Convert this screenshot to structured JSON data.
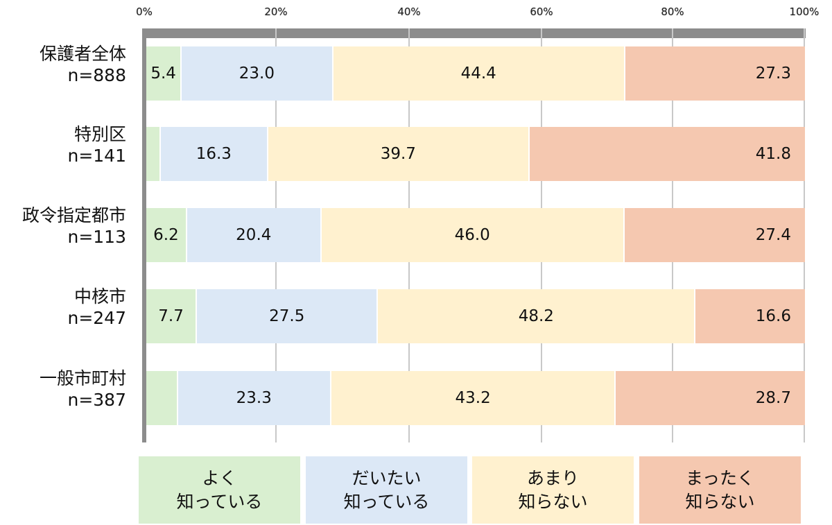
{
  "chart_data": {
    "type": "bar",
    "orientation": "horizontal",
    "stacked": true,
    "percent": true,
    "title": "",
    "xlabel": "",
    "ylabel": "",
    "xlim": [
      0,
      100
    ],
    "x_ticks": [
      "0%",
      "20%",
      "40%",
      "60%",
      "80%",
      "100%"
    ],
    "grid": true,
    "legend_position": "bottom",
    "categories": [
      {
        "name": "保護者全体",
        "n": "n=888"
      },
      {
        "name": "特別区",
        "n": "n=141"
      },
      {
        "name": "政令指定都市",
        "n": "n=113"
      },
      {
        "name": "中核市",
        "n": "n=247"
      },
      {
        "name": "一般市町村",
        "n": "n=387"
      }
    ],
    "series": [
      {
        "name": "よく知っている",
        "color": "#d9efd0",
        "values": [
          5.4,
          2.2,
          6.2,
          7.7,
          4.8
        ],
        "labels": [
          "5.4",
          "",
          "6.2",
          "7.7",
          ""
        ]
      },
      {
        "name": "だいたい知っている",
        "color": "#dce8f6",
        "values": [
          23.0,
          16.3,
          20.4,
          27.5,
          23.3
        ],
        "labels": [
          "23.0",
          "16.3",
          "20.4",
          "27.5",
          "23.3"
        ]
      },
      {
        "name": "あまり知らない",
        "color": "#fff1cf",
        "values": [
          44.4,
          39.7,
          46.0,
          48.2,
          43.2
        ],
        "labels": [
          "44.4",
          "39.7",
          "46.0",
          "48.2",
          "43.2"
        ]
      },
      {
        "name": "まったく知らない",
        "color": "#f5c8b0",
        "values": [
          27.3,
          41.8,
          27.4,
          16.6,
          28.7
        ],
        "labels": [
          "27.3",
          "41.8",
          "27.4",
          "16.6",
          "28.7"
        ]
      }
    ]
  },
  "axis": {
    "ticks": [
      "0%",
      "20%",
      "40%",
      "60%",
      "80%",
      "100%"
    ]
  },
  "rows": [
    {
      "label": "保護者全体",
      "n": "n=888"
    },
    {
      "label": "特別区",
      "n": "n=141"
    },
    {
      "label": "政令指定都市",
      "n": "n=113"
    },
    {
      "label": "中核市",
      "n": "n=247"
    },
    {
      "label": "一般市町村",
      "n": "n=387"
    }
  ],
  "legend": [
    {
      "line1": "よく",
      "line2": "知っている",
      "color": "#d9efd0"
    },
    {
      "line1": "だいたい",
      "line2": "知っている",
      "color": "#dce8f6"
    },
    {
      "line1": "あまり",
      "line2": "知らない",
      "color": "#fff1cf"
    },
    {
      "line1": "まったく",
      "line2": "知らない",
      "color": "#f5c8b0"
    }
  ]
}
